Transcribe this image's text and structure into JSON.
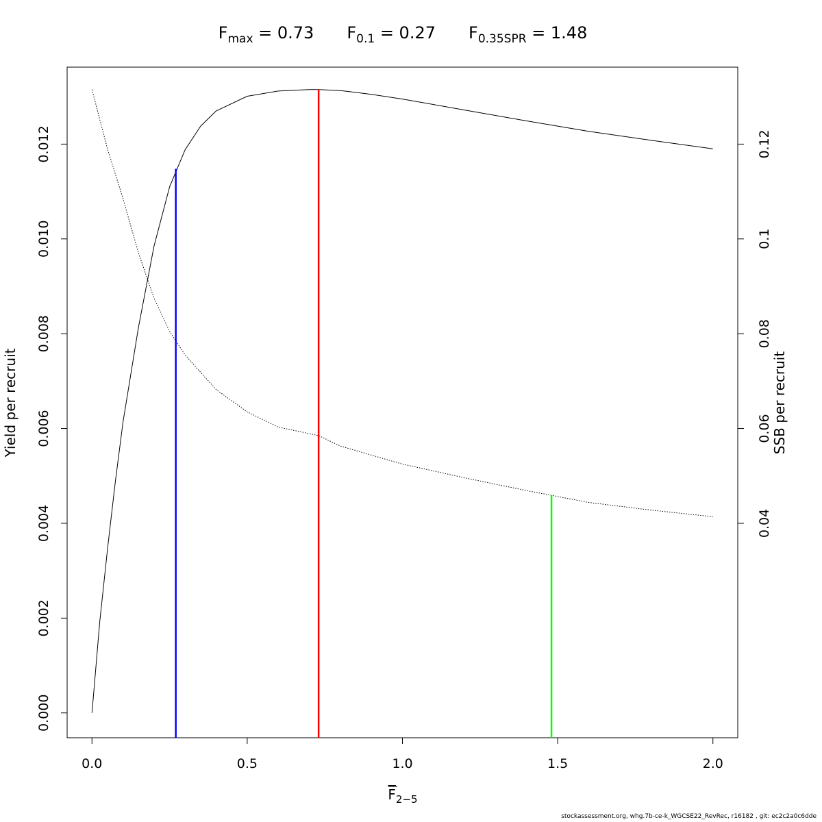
{
  "chart_data": {
    "type": "line",
    "title_parts": [
      {
        "main": "F",
        "sub": "max",
        "rest": " = 0.73"
      },
      {
        "main": "F",
        "sub": "0.1",
        "rest": " = 0.27"
      },
      {
        "main": "F",
        "sub": "0.35SPR",
        "rest": " = 1.48"
      }
    ],
    "xlabel": {
      "main": "F",
      "sub": "2−5"
    },
    "ylabel_left": "Yield per recruit",
    "ylabel_right": "SSB per recruit",
    "xlim": [
      -0.08,
      2.08
    ],
    "ylim_left": [
      -0.000524,
      0.013624
    ],
    "ylim_right": [
      -0.00524,
      0.13624
    ],
    "x_ticks": [
      {
        "v": 0.0,
        "label": "0.0"
      },
      {
        "v": 0.5,
        "label": "0.5"
      },
      {
        "v": 1.0,
        "label": "1.0"
      },
      {
        "v": 1.5,
        "label": "1.5"
      },
      {
        "v": 2.0,
        "label": "2.0"
      }
    ],
    "y_ticks_left": [
      {
        "v": 0.0,
        "label": "0.000"
      },
      {
        "v": 0.002,
        "label": "0.002"
      },
      {
        "v": 0.004,
        "label": "0.004"
      },
      {
        "v": 0.006,
        "label": "0.006"
      },
      {
        "v": 0.008,
        "label": "0.008"
      },
      {
        "v": 0.01,
        "label": "0.010"
      },
      {
        "v": 0.012,
        "label": "0.012"
      }
    ],
    "y_ticks_right": [
      {
        "v": 0.04,
        "label": "0.04"
      },
      {
        "v": 0.06,
        "label": "0.06"
      },
      {
        "v": 0.08,
        "label": "0.08"
      },
      {
        "v": 0.1,
        "label": "0.1"
      },
      {
        "v": 0.12,
        "label": "0.12"
      }
    ],
    "series": [
      {
        "style": "solid",
        "axis": "left",
        "color": "#000000",
        "x": [
          0,
          0.025,
          0.05,
          0.075,
          0.1,
          0.15,
          0.2,
          0.25,
          0.3,
          0.35,
          0.4,
          0.5,
          0.6,
          0.7,
          0.73,
          0.8,
          0.9,
          1.0,
          1.2,
          1.4,
          1.6,
          1.8,
          2.0
        ],
        "y": [
          0,
          0.00192,
          0.00345,
          0.00487,
          0.00614,
          0.00814,
          0.00985,
          0.0111,
          0.01188,
          0.01238,
          0.0127,
          0.01301,
          0.01312,
          0.01315,
          0.01315,
          0.01313,
          0.01305,
          0.01295,
          0.01272,
          0.01249,
          0.01227,
          0.01208,
          0.0119
        ]
      },
      {
        "style": "dotted",
        "axis": "right",
        "color": "#000000",
        "x": [
          0,
          0.05,
          0.1,
          0.15,
          0.2,
          0.25,
          0.3,
          0.4,
          0.5,
          0.6,
          0.73,
          0.8,
          1.0,
          1.2,
          1.4,
          1.48,
          1.6,
          1.8,
          2.0
        ],
        "y": [
          0.1315,
          0.119,
          0.1085,
          0.097,
          0.0875,
          0.0805,
          0.0755,
          0.0682,
          0.0635,
          0.0603,
          0.0585,
          0.0563,
          0.0525,
          0.0496,
          0.0469,
          0.0459,
          0.0444,
          0.0428,
          0.0414
        ]
      }
    ],
    "reference_lines": [
      {
        "name": "Fmax",
        "x": 0.73,
        "y_top": 0.01315,
        "axis": "left",
        "color": "#ff0000"
      },
      {
        "name": "F0.1",
        "x": 0.27,
        "y_top": 0.01148,
        "axis": "left",
        "color": "#0000ff"
      },
      {
        "name": "F0.35SPR",
        "x": 1.48,
        "y_top": 0.0459,
        "axis": "right",
        "color": "#00ff00"
      }
    ],
    "grid": false,
    "legend": "none"
  },
  "footer": "stockassessment.org, whg.7b-ce-k_WGCSE22_RevRec, r16182 , git: ec2c2a0c6dde"
}
